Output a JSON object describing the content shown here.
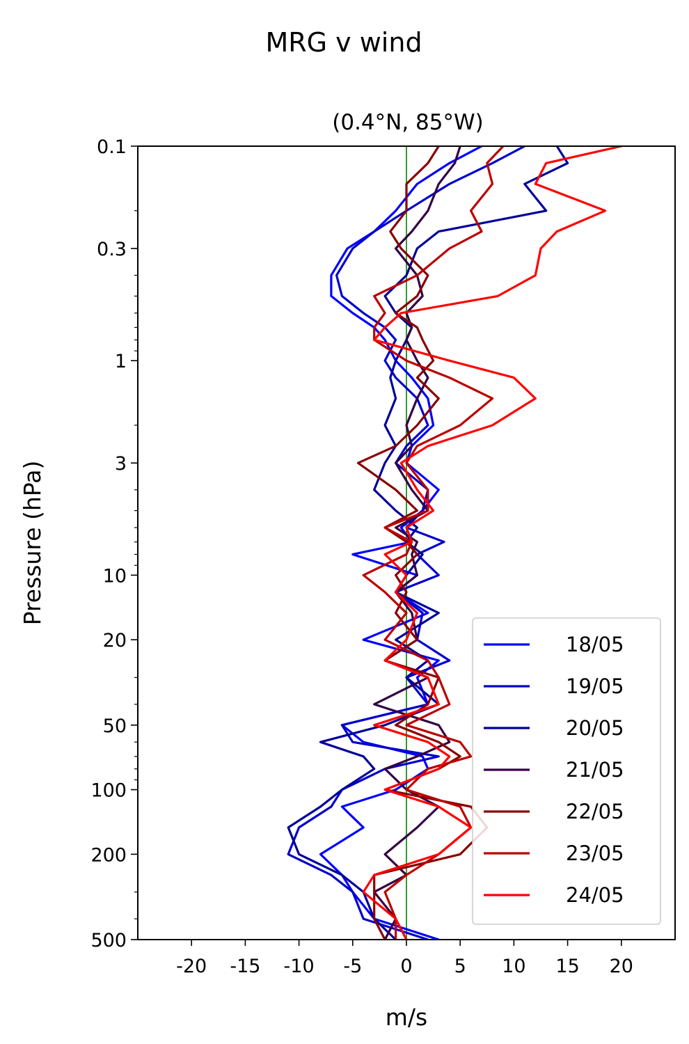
{
  "chart_data": {
    "type": "line",
    "title": "MRG v wind",
    "subtitle": "(0.4°N, 85°W)",
    "xlabel": "m/s",
    "ylabel": "Pressure (hPa)",
    "xlim": [
      -25,
      25
    ],
    "ylim": [
      500,
      0.1
    ],
    "yscale": "log",
    "xticks": [
      -20,
      -15,
      -10,
      -5,
      0,
      5,
      10,
      15,
      20
    ],
    "xtick_labels": [
      "-20",
      "-15",
      "-10",
      "-5",
      "0",
      "5",
      "10",
      "15",
      "20"
    ],
    "yticks": [
      0.1,
      0.3,
      1,
      3,
      10,
      20,
      50,
      100,
      200,
      500
    ],
    "ytick_labels": [
      "0.1",
      "0.3",
      "1",
      "3",
      "10",
      "20",
      "50",
      "100",
      "200",
      "500"
    ],
    "reference_line": {
      "x": 0,
      "color": "#008000"
    },
    "legend_position": "lower-right",
    "pressure": [
      0.1,
      0.12,
      0.15,
      0.2,
      0.25,
      0.3,
      0.4,
      0.5,
      0.6,
      0.7,
      0.8,
      1.0,
      1.2,
      1.5,
      2.0,
      2.5,
      3.0,
      4.0,
      5.0,
      6.0,
      7.0,
      8.0,
      10,
      12,
      15,
      20,
      25,
      30,
      40,
      50,
      60,
      70,
      80,
      100,
      120,
      150,
      200,
      250,
      300,
      400,
      500
    ],
    "series": [
      {
        "name": "18/05",
        "color": "#0000ff",
        "values": [
          7,
          4,
          1,
          -1,
          -3,
          -5.5,
          -7,
          -7,
          -5,
          -3,
          -2,
          -1,
          0.5,
          2,
          2.5,
          0.5,
          0,
          3,
          1.5,
          -0.5,
          0.5,
          -5,
          1,
          -1,
          2,
          -4,
          3,
          1,
          2,
          -6,
          -4,
          1.5,
          2,
          -1,
          -6,
          -4,
          -8,
          -6,
          -5,
          -3,
          3
        ]
      },
      {
        "name": "19/05",
        "color": "#0000cc",
        "values": [
          11,
          8,
          4,
          0,
          -3,
          -5,
          -6.5,
          -6,
          -4,
          -2,
          -1,
          -2,
          -1,
          1,
          2,
          0,
          -1,
          2,
          1.5,
          0,
          3.5,
          1,
          3,
          -1,
          1.5,
          1,
          4,
          0,
          2,
          -6,
          -5,
          3,
          -2,
          -6,
          -7,
          -10,
          -11,
          -7,
          -5,
          -4,
          2
        ]
      },
      {
        "name": "20/05",
        "color": "#000099",
        "values": [
          14,
          15,
          11,
          13,
          3,
          1,
          0,
          -2,
          -1,
          0.5,
          0,
          -1,
          -1.5,
          -1,
          -2,
          -1,
          -2,
          -3,
          -1,
          1,
          0,
          1.5,
          0,
          -1,
          3,
          -1,
          2,
          0,
          3,
          -2,
          -8,
          -4,
          -3,
          -6,
          -8,
          -11,
          -10,
          -6,
          -4,
          -3,
          -1
        ]
      },
      {
        "name": "21/05",
        "color": "#330044",
        "values": [
          5,
          4.5,
          3,
          2,
          0.5,
          -1,
          1,
          1.5,
          0,
          0.5,
          0,
          1,
          2,
          1,
          0,
          0.5,
          -1,
          0.5,
          2,
          -1,
          1,
          0.5,
          1,
          -1,
          0.5,
          1,
          -2,
          2,
          -3,
          3,
          4,
          1,
          -2,
          0,
          3,
          1,
          -2,
          0,
          -3,
          -1,
          -2
        ]
      },
      {
        "name": "22/05",
        "color": "#880000",
        "values": [
          3,
          2,
          0,
          0,
          -1.5,
          -0.5,
          2,
          1,
          -1,
          1,
          1.5,
          2.5,
          1,
          3,
          1,
          -1,
          -4.5,
          -1,
          1,
          -2,
          0,
          1,
          -1,
          0,
          -1,
          1,
          -2,
          3,
          2,
          -1,
          3,
          5,
          3,
          -2,
          6,
          7.5,
          5,
          -3,
          -3,
          -3,
          -2
        ]
      },
      {
        "name": "23/05",
        "color": "#bb0000",
        "values": [
          9,
          7.5,
          8,
          6,
          7,
          4,
          1,
          -3,
          -2,
          -3,
          -3,
          0,
          4,
          8,
          5,
          1,
          0,
          2,
          2,
          -2,
          0.5,
          0,
          -4,
          -2,
          0,
          -2,
          2,
          3,
          4,
          0,
          5,
          6,
          2,
          0,
          5,
          6,
          3,
          0,
          -2,
          -1,
          -1
        ]
      },
      {
        "name": "24/05",
        "color": "#ff0000",
        "values": [
          20,
          13,
          12,
          18.5,
          14,
          12.5,
          12,
          8.5,
          -0.5,
          -2,
          -3,
          4,
          10,
          12,
          8,
          2,
          -0.5,
          1,
          2.5,
          0,
          0.5,
          -2,
          0,
          -1,
          1,
          0,
          -2,
          2,
          3,
          -3,
          2,
          4,
          3,
          -2,
          3,
          6,
          3,
          -3,
          -4,
          -1,
          0
        ]
      }
    ]
  }
}
